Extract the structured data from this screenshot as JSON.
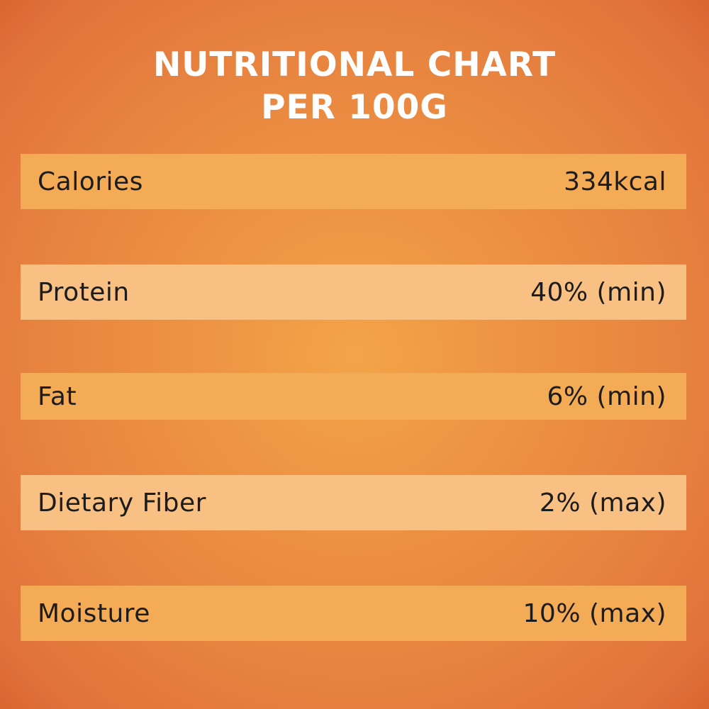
{
  "title": {
    "line1": "NUTRITIONAL CHART",
    "line2": "PER 100G"
  },
  "rows": [
    {
      "label": "Calories",
      "value": "334kcal"
    },
    {
      "label": "Protein",
      "value": "40% (min)"
    },
    {
      "label": "Fat",
      "value": "6% (min)"
    },
    {
      "label": "Dietary Fiber",
      "value": "2% (max)"
    },
    {
      "label": "Moisture",
      "value": "10% (max)"
    }
  ],
  "colors": {
    "background": "#ee9443",
    "row_dark": "#f4ab56",
    "row_light": "#f9c083",
    "title_text": "#ffffff",
    "row_text": "#1c1c1c"
  }
}
